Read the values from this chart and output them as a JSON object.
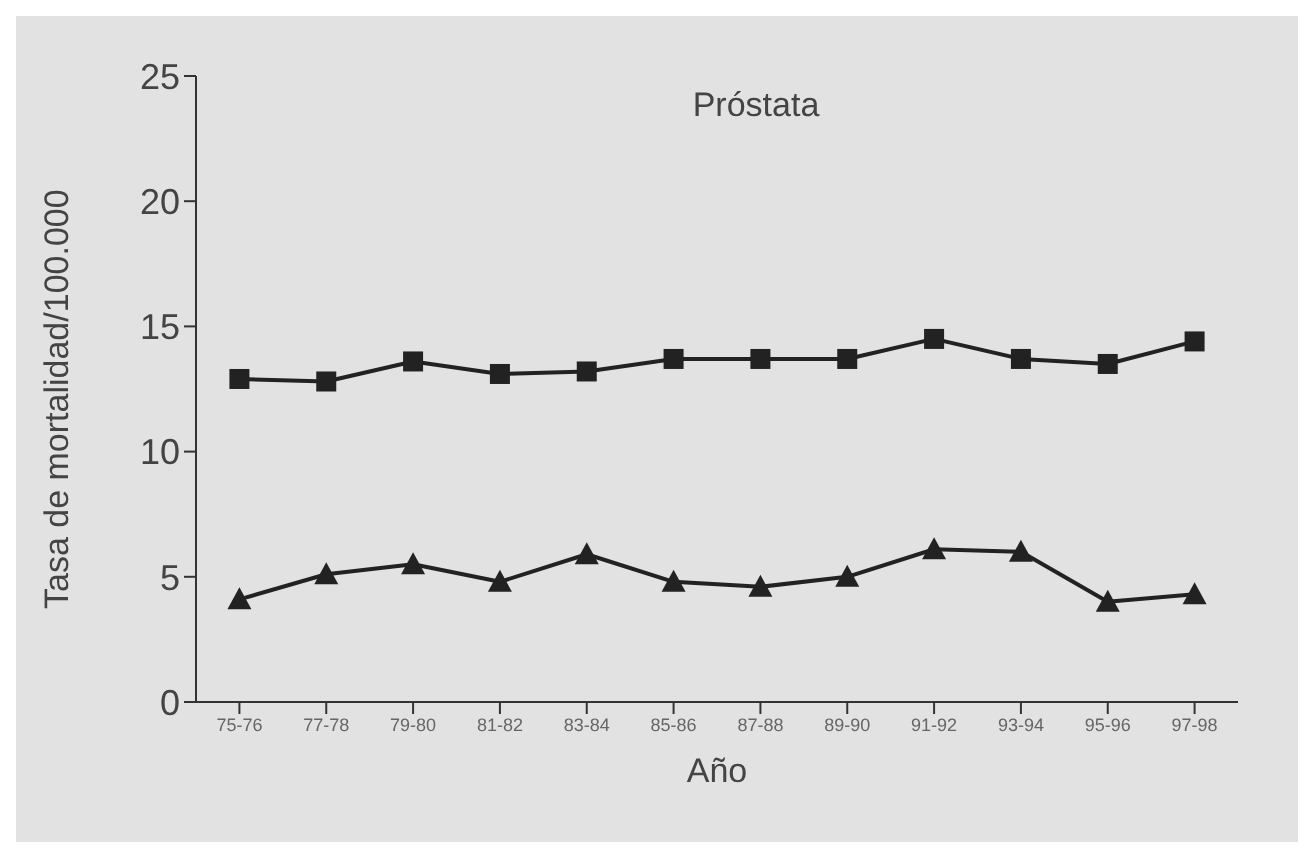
{
  "chart_data": {
    "type": "line",
    "title": "Próstata",
    "xlabel": "Año",
    "ylabel": "Tasa de mortalidad/100.000",
    "categories": [
      "75-76",
      "77-78",
      "79-80",
      "81-82",
      "83-84",
      "85-86",
      "87-88",
      "89-90",
      "91-92",
      "93-94",
      "95-96",
      "97-98"
    ],
    "series": [
      {
        "color": "#222222",
        "marker": "square",
        "values": [
          12.9,
          12.8,
          13.6,
          13.1,
          13.2,
          13.7,
          13.7,
          13.7,
          14.5,
          13.7,
          13.5,
          14.4
        ]
      },
      {
        "color": "#222222",
        "marker": "triangle",
        "values": [
          4.1,
          5.1,
          5.5,
          4.8,
          5.9,
          4.8,
          4.6,
          5.0,
          6.1,
          6.0,
          4.0,
          4.3
        ]
      }
    ],
    "ylim": [
      0,
      25
    ],
    "yticks": [
      0,
      5,
      10,
      15,
      20,
      25
    ],
    "grid": false,
    "legend": false
  }
}
